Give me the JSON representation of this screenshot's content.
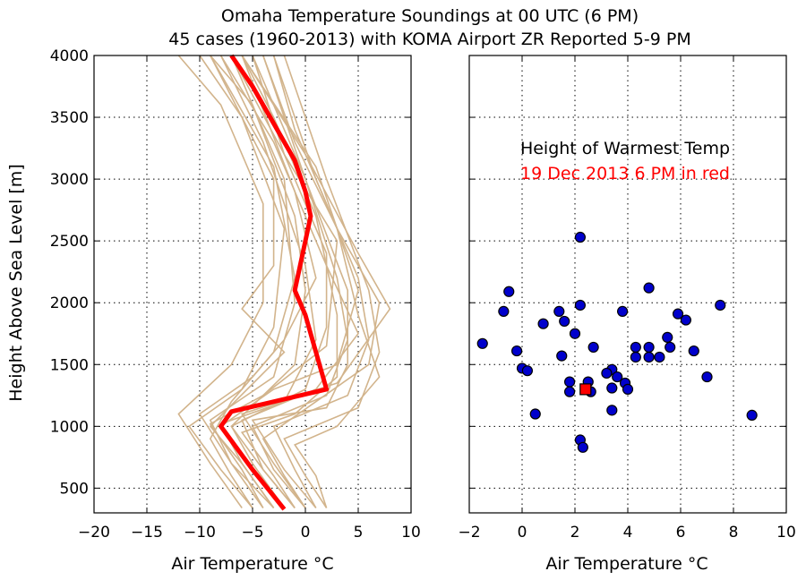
{
  "title": "Omaha Temperature Soundings at 00 UTC (6 PM)",
  "subtitle": "45 cases (1960-2013) with KOMA Airport ZR Reported 5-9 PM",
  "colors": {
    "sounding": "#d2b48c",
    "highlight": "#ff0000",
    "point": "#0000cc",
    "grid": "#000000"
  },
  "chart_data": [
    {
      "type": "line",
      "panel": "left",
      "xlabel": "Air Temperature °C",
      "ylabel": "Height Above Sea Level [m]",
      "xlim": [
        -20,
        10
      ],
      "ylim": [
        300,
        4000
      ],
      "xticks": [
        -20,
        -15,
        -10,
        -5,
        0,
        5,
        10
      ],
      "yticks": [
        500,
        1000,
        1500,
        2000,
        2500,
        3000,
        3500,
        4000
      ],
      "grid": true,
      "series": [
        {
          "highlight": true,
          "points": [
            [
              -2,
              330
            ],
            [
              -5,
              650
            ],
            [
              -8,
              1000
            ],
            [
              -7,
              1120
            ],
            [
              2,
              1300
            ],
            [
              1,
              1600
            ],
            [
              0,
              1900
            ],
            [
              -1,
              2100
            ],
            [
              0,
              2500
            ],
            [
              0.5,
              2700
            ],
            [
              0,
              2900
            ],
            [
              -1,
              3150
            ],
            [
              -5,
              3750
            ],
            [
              -7,
              4000
            ]
          ]
        }
      ],
      "tan_soundings": [
        [
          [
            -4,
            340
          ],
          [
            -7,
            700
          ],
          [
            -9,
            1050
          ],
          [
            -3,
            1400
          ],
          [
            -1,
            2000
          ],
          [
            -2,
            3000
          ],
          [
            -7,
            4000
          ]
        ],
        [
          [
            -3,
            340
          ],
          [
            -6,
            700
          ],
          [
            -8,
            1020
          ],
          [
            -2,
            1200
          ],
          [
            1,
            1700
          ],
          [
            0,
            2300
          ],
          [
            -4,
            3300
          ],
          [
            -8,
            4000
          ]
        ],
        [
          [
            -1,
            340
          ],
          [
            -4,
            650
          ],
          [
            -7,
            1000
          ],
          [
            0,
            1300
          ],
          [
            2,
            1800
          ],
          [
            2,
            2400
          ],
          [
            -2,
            3200
          ],
          [
            -5,
            4000
          ]
        ],
        [
          [
            0,
            340
          ],
          [
            -3,
            650
          ],
          [
            -5,
            1000
          ],
          [
            2,
            1250
          ],
          [
            4,
            1700
          ],
          [
            3,
            2200
          ],
          [
            0,
            3000
          ],
          [
            -4,
            4000
          ]
        ],
        [
          [
            1,
            340
          ],
          [
            -1,
            650
          ],
          [
            -3,
            1000
          ],
          [
            4,
            1250
          ],
          [
            6,
            1700
          ],
          [
            5,
            2200
          ],
          [
            1,
            3000
          ],
          [
            -3,
            4000
          ]
        ],
        [
          [
            -2,
            340
          ],
          [
            -5,
            650
          ],
          [
            -8,
            1000
          ],
          [
            -3,
            1300
          ],
          [
            3,
            1500
          ],
          [
            5,
            2100
          ],
          [
            1,
            3100
          ],
          [
            -6,
            4000
          ]
        ],
        [
          [
            -5,
            340
          ],
          [
            -8,
            650
          ],
          [
            -11,
            1000
          ],
          [
            -6,
            1300
          ],
          [
            -3,
            1800
          ],
          [
            -2,
            2600
          ],
          [
            -6,
            3500
          ],
          [
            -10,
            4000
          ]
        ],
        [
          [
            -6,
            340
          ],
          [
            -9,
            700
          ],
          [
            -12,
            1100
          ],
          [
            -7,
            1500
          ],
          [
            -4,
            2000
          ],
          [
            -4,
            2800
          ],
          [
            -8,
            3600
          ],
          [
            -12,
            4000
          ]
        ],
        [
          [
            -3,
            340
          ],
          [
            -6,
            700
          ],
          [
            -9,
            1000
          ],
          [
            -2,
            1600
          ],
          [
            -6,
            1950
          ],
          [
            -3,
            2300
          ],
          [
            -3,
            3000
          ],
          [
            -9,
            4000
          ]
        ],
        [
          [
            2,
            340
          ],
          [
            0,
            600
          ],
          [
            -2,
            900
          ],
          [
            5,
            1150
          ],
          [
            7,
            1600
          ],
          [
            6,
            2100
          ],
          [
            2,
            3000
          ],
          [
            -2,
            4000
          ]
        ],
        [
          [
            0,
            340
          ],
          [
            -3,
            700
          ],
          [
            -6,
            1100
          ],
          [
            3,
            1350
          ],
          [
            8,
            1950
          ],
          [
            5,
            2400
          ],
          [
            0,
            3200
          ],
          [
            -6,
            4000
          ]
        ],
        [
          [
            -1,
            340
          ],
          [
            -4,
            650
          ],
          [
            -6,
            1050
          ],
          [
            1,
            1300
          ],
          [
            5,
            1750
          ],
          [
            2,
            2300
          ],
          [
            -3,
            3300
          ],
          [
            -8,
            4000
          ]
        ],
        [
          [
            -2,
            340
          ],
          [
            -5,
            700
          ],
          [
            -7,
            1000
          ],
          [
            -1,
            1500
          ],
          [
            0,
            2100
          ],
          [
            -1,
            2700
          ],
          [
            -5,
            3600
          ],
          [
            -9,
            4000
          ]
        ],
        [
          [
            1,
            340
          ],
          [
            -2,
            650
          ],
          [
            -5,
            1050
          ],
          [
            2,
            1150
          ],
          [
            4,
            1500
          ],
          [
            4,
            2100
          ],
          [
            0,
            3000
          ],
          [
            -5,
            4000
          ]
        ],
        [
          [
            -4,
            340
          ],
          [
            -6,
            650
          ],
          [
            -9,
            1020
          ],
          [
            -4,
            1250
          ],
          [
            2,
            1650
          ],
          [
            3,
            2500
          ],
          [
            -2,
            3200
          ],
          [
            -7,
            4000
          ]
        ],
        [
          [
            0,
            340
          ],
          [
            -2,
            600
          ],
          [
            -4,
            900
          ],
          [
            1,
            1200
          ],
          [
            6,
            1500
          ],
          [
            7,
            2000
          ],
          [
            3,
            2600
          ],
          [
            -1,
            3300
          ],
          [
            -4,
            4000
          ]
        ],
        [
          [
            -3,
            340
          ],
          [
            -7,
            700
          ],
          [
            -10,
            1100
          ],
          [
            -5,
            1400
          ],
          [
            -2,
            1700
          ],
          [
            1,
            2200
          ],
          [
            -1,
            2900
          ],
          [
            -6,
            4000
          ]
        ],
        [
          [
            -1,
            340
          ],
          [
            -3,
            600
          ],
          [
            -6,
            950
          ],
          [
            -1,
            1100
          ],
          [
            3,
            1400
          ],
          [
            3,
            1900
          ],
          [
            1,
            2700
          ],
          [
            -3,
            3500
          ],
          [
            -6,
            4000
          ]
        ],
        [
          [
            2,
            340
          ],
          [
            1,
            600
          ],
          [
            -1,
            850
          ],
          [
            3,
            1000
          ],
          [
            7,
            1400
          ],
          [
            5,
            1900
          ],
          [
            3,
            2600
          ],
          [
            -1,
            3400
          ],
          [
            -3,
            4000
          ]
        ],
        [
          [
            -5,
            340
          ],
          [
            -7,
            600
          ],
          [
            -9,
            900
          ],
          [
            -7,
            1200
          ],
          [
            -3,
            1600
          ],
          [
            -1,
            2200
          ],
          [
            -3,
            3100
          ],
          [
            -9,
            4000
          ]
        ]
      ]
    },
    {
      "type": "scatter",
      "panel": "right",
      "xlabel": "Air Temperature °C",
      "xlim": [
        -2,
        10
      ],
      "ylim": [
        300,
        4000
      ],
      "xticks": [
        -2,
        0,
        2,
        4,
        6,
        8,
        10
      ],
      "grid": true,
      "annotation": "Height of Warmest Temp",
      "highlight_label": "19 Dec 2013 6 PM in red",
      "highlight_point": [
        2.4,
        1300
      ],
      "points": [
        [
          2.2,
          2530
        ],
        [
          -0.5,
          2090
        ],
        [
          4.8,
          2120
        ],
        [
          -0.7,
          1930
        ],
        [
          2.2,
          1980
        ],
        [
          3.8,
          1930
        ],
        [
          7.5,
          1980
        ],
        [
          1.4,
          1930
        ],
        [
          5.9,
          1910
        ],
        [
          6.2,
          1860
        ],
        [
          0.8,
          1830
        ],
        [
          1.6,
          1850
        ],
        [
          2.0,
          1750
        ],
        [
          5.5,
          1720
        ],
        [
          -1.5,
          1670
        ],
        [
          2.7,
          1640
        ],
        [
          4.3,
          1640
        ],
        [
          4.8,
          1640
        ],
        [
          5.6,
          1640
        ],
        [
          -0.2,
          1610
        ],
        [
          6.5,
          1610
        ],
        [
          1.5,
          1570
        ],
        [
          4.3,
          1560
        ],
        [
          4.8,
          1560
        ],
        [
          5.2,
          1560
        ],
        [
          0.0,
          1470
        ],
        [
          0.2,
          1450
        ],
        [
          3.4,
          1460
        ],
        [
          3.2,
          1430
        ],
        [
          3.6,
          1400
        ],
        [
          7.0,
          1400
        ],
        [
          1.8,
          1360
        ],
        [
          2.5,
          1360
        ],
        [
          3.9,
          1350
        ],
        [
          3.4,
          1310
        ],
        [
          4.0,
          1300
        ],
        [
          1.8,
          1280
        ],
        [
          2.6,
          1280
        ],
        [
          3.4,
          1130
        ],
        [
          0.5,
          1100
        ],
        [
          8.7,
          1090
        ],
        [
          2.2,
          890
        ],
        [
          2.3,
          830
        ]
      ]
    }
  ]
}
